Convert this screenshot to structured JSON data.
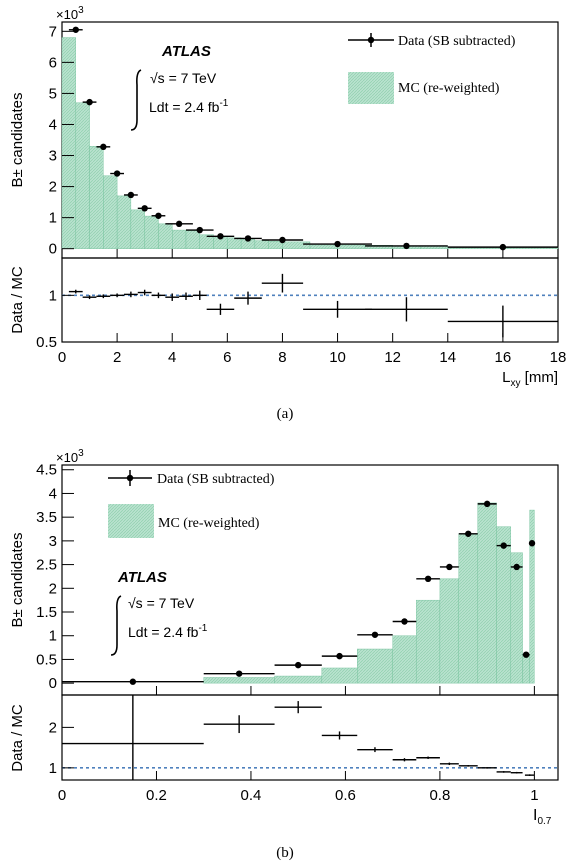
{
  "colors": {
    "mc_fill": "#a8d8c0",
    "mc_edge": "#6fbf98",
    "data": "#000000",
    "unity_line": "#4f81bd"
  },
  "chart_data": [
    {
      "panel": "(a)",
      "type": "histogram_ratio",
      "main": {
        "ylabel": "B± candidates",
        "y_multiplier": "×10",
        "y_multiplier_exp": "3",
        "ylim": [
          -0.3,
          7.3
        ],
        "yticks": [
          "0",
          "1",
          "2",
          "3",
          "4",
          "5",
          "6",
          "7"
        ],
        "atlas": "ATLAS",
        "energy": "√s = 7 TeV",
        "lumi": "Ldt = 2.4 fb",
        "lumi_exp": "-1",
        "legend": {
          "data": "Data (SB subtracted)",
          "mc": "MC (re-weighted)",
          "placement": "top-right"
        },
        "mc_hist": {
          "edges": [
            0.0,
            0.5,
            1.0,
            1.5,
            2.0,
            2.5,
            3.0,
            3.5,
            4.0,
            4.5,
            5.0,
            5.5,
            6.0,
            6.5,
            7.0,
            7.5,
            8.0,
            9.0,
            10.0,
            11.0,
            12.0,
            13.0,
            14.0,
            18.0
          ],
          "values": [
            6.8,
            4.7,
            3.3,
            2.35,
            1.7,
            1.25,
            1.05,
            0.8,
            0.6,
            0.58,
            0.45,
            0.38,
            0.35,
            0.3,
            0.26,
            0.24,
            0.22,
            0.12,
            0.12,
            0.11,
            0.08,
            0.08,
            0.06
          ]
        },
        "data_points": [
          {
            "x": 0.5,
            "xerr": 0.25,
            "y": 7.05,
            "yerr": 0.08
          },
          {
            "x": 1.0,
            "xerr": 0.25,
            "y": 4.72,
            "yerr": 0.07
          },
          {
            "x": 1.5,
            "xerr": 0.25,
            "y": 3.28,
            "yerr": 0.06
          },
          {
            "x": 2.0,
            "xerr": 0.25,
            "y": 2.42,
            "yerr": 0.05
          },
          {
            "x": 2.5,
            "xerr": 0.25,
            "y": 1.73,
            "yerr": 0.04
          },
          {
            "x": 3.0,
            "xerr": 0.25,
            "y": 1.3,
            "yerr": 0.04
          },
          {
            "x": 3.5,
            "xerr": 0.25,
            "y": 1.06,
            "yerr": 0.03
          },
          {
            "x": 4.25,
            "xerr": 0.5,
            "y": 0.8,
            "yerr": 0.03
          },
          {
            "x": 5.0,
            "xerr": 0.5,
            "y": 0.6,
            "yerr": 0.03
          },
          {
            "x": 5.75,
            "xerr": 0.5,
            "y": 0.4,
            "yerr": 0.02
          },
          {
            "x": 6.75,
            "xerr": 0.5,
            "y": 0.33,
            "yerr": 0.02
          },
          {
            "x": 8.0,
            "xerr": 0.75,
            "y": 0.28,
            "yerr": 0.02
          },
          {
            "x": 10.0,
            "xerr": 1.25,
            "y": 0.15,
            "yerr": 0.015
          },
          {
            "x": 12.5,
            "xerr": 1.5,
            "y": 0.09,
            "yerr": 0.01
          },
          {
            "x": 16.0,
            "xerr": 2.0,
            "y": 0.05,
            "yerr": 0.01
          }
        ]
      },
      "ratio": {
        "ylabel": "Data / MC",
        "ylim": [
          0.5,
          1.4
        ],
        "yticks": [
          "0.5",
          "1"
        ],
        "ytick_values": [
          0.5,
          1.0
        ],
        "points": [
          {
            "x": 0.5,
            "xerr": 0.25,
            "y": 1.04,
            "yerr": 0.02
          },
          {
            "x": 1.0,
            "xerr": 0.25,
            "y": 0.98,
            "yerr": 0.02
          },
          {
            "x": 1.5,
            "xerr": 0.25,
            "y": 0.99,
            "yerr": 0.02
          },
          {
            "x": 2.0,
            "xerr": 0.25,
            "y": 1.0,
            "yerr": 0.02
          },
          {
            "x": 2.5,
            "xerr": 0.25,
            "y": 1.01,
            "yerr": 0.03
          },
          {
            "x": 3.0,
            "xerr": 0.25,
            "y": 1.03,
            "yerr": 0.03
          },
          {
            "x": 3.5,
            "xerr": 0.25,
            "y": 1.0,
            "yerr": 0.03
          },
          {
            "x": 4.0,
            "xerr": 0.25,
            "y": 0.98,
            "yerr": 0.04
          },
          {
            "x": 4.5,
            "xerr": 0.25,
            "y": 0.99,
            "yerr": 0.04
          },
          {
            "x": 5.0,
            "xerr": 0.25,
            "y": 1.0,
            "yerr": 0.05
          },
          {
            "x": 5.75,
            "xerr": 0.5,
            "y": 0.85,
            "yerr": 0.06
          },
          {
            "x": 6.75,
            "xerr": 0.5,
            "y": 0.97,
            "yerr": 0.07
          },
          {
            "x": 8.0,
            "xerr": 0.75,
            "y": 1.13,
            "yerr": 0.1
          },
          {
            "x": 10.0,
            "xerr": 1.25,
            "y": 0.85,
            "yerr": 0.09
          },
          {
            "x": 12.5,
            "xerr": 1.5,
            "y": 0.85,
            "yerr": 0.13
          },
          {
            "x": 16.0,
            "xerr": 2.0,
            "y": 0.72,
            "yerr": 0.17
          }
        ]
      },
      "x": {
        "label": "L",
        "label_sub": "xy",
        "label_unit": " [mm]",
        "lim": [
          0,
          18
        ],
        "ticks": [
          "0",
          "2",
          "4",
          "6",
          "8",
          "10",
          "12",
          "14",
          "16",
          "18"
        ],
        "tick_values": [
          0,
          2,
          4,
          6,
          8,
          10,
          12,
          14,
          16,
          18
        ]
      }
    },
    {
      "panel": "(b)",
      "type": "histogram_ratio",
      "main": {
        "ylabel": "B± candidates",
        "y_multiplier": "×10",
        "y_multiplier_exp": "3",
        "ylim": [
          -0.25,
          4.6
        ],
        "yticks": [
          "0",
          "0.5",
          "1",
          "1.5",
          "2",
          "2.5",
          "3",
          "3.5",
          "4",
          "4.5"
        ],
        "atlas": "ATLAS",
        "energy": "√s = 7 TeV",
        "lumi": "Ldt = 2.4 fb",
        "lumi_exp": "-1",
        "legend": {
          "data": "Data (SB subtracted)",
          "mc": "MC (re-weighted)",
          "placement": "top-left"
        },
        "mc_hist": {
          "edges": [
            0.0,
            0.3,
            0.45,
            0.55,
            0.625,
            0.7,
            0.75,
            0.8,
            0.84,
            0.88,
            0.92,
            0.95,
            0.975,
            0.99,
            1.0
          ],
          "values": [
            0.0,
            0.12,
            0.15,
            0.32,
            0.72,
            1.0,
            1.75,
            2.2,
            3.15,
            3.8,
            3.3,
            2.75,
            0.6,
            3.65
          ]
        },
        "data_points": [
          {
            "x": 0.15,
            "xerr": 0.15,
            "y": 0.03,
            "yerr": 0.03
          },
          {
            "x": 0.375,
            "xerr": 0.075,
            "y": 0.2,
            "yerr": 0.02
          },
          {
            "x": 0.5,
            "xerr": 0.05,
            "y": 0.38,
            "yerr": 0.03
          },
          {
            "x": 0.5875,
            "xerr": 0.0375,
            "y": 0.57,
            "yerr": 0.03
          },
          {
            "x": 0.6625,
            "xerr": 0.0375,
            "y": 1.02,
            "yerr": 0.04
          },
          {
            "x": 0.725,
            "xerr": 0.025,
            "y": 1.3,
            "yerr": 0.04
          },
          {
            "x": 0.775,
            "xerr": 0.025,
            "y": 2.2,
            "yerr": 0.05
          },
          {
            "x": 0.82,
            "xerr": 0.02,
            "y": 2.45,
            "yerr": 0.05
          },
          {
            "x": 0.86,
            "xerr": 0.02,
            "y": 3.15,
            "yerr": 0.06
          },
          {
            "x": 0.9,
            "xerr": 0.02,
            "y": 3.78,
            "yerr": 0.06
          },
          {
            "x": 0.935,
            "xerr": 0.015,
            "y": 2.9,
            "yerr": 0.05
          },
          {
            "x": 0.9625,
            "xerr": 0.0125,
            "y": 2.45,
            "yerr": 0.05
          },
          {
            "x": 0.9825,
            "xerr": 0.0075,
            "y": 0.6,
            "yerr": 0.03
          },
          {
            "x": 0.995,
            "xerr": 0.005,
            "y": 2.95,
            "yerr": 0.05
          }
        ]
      },
      "ratio": {
        "ylabel": "Data / MC",
        "ylim": [
          0.7,
          2.8
        ],
        "yticks": [
          "1",
          "2"
        ],
        "ytick_values": [
          1,
          2
        ],
        "points": [
          {
            "x": 0.15,
            "xerr": 0.15,
            "y": 1.6,
            "yerr": 1.2
          },
          {
            "x": 0.375,
            "xerr": 0.075,
            "y": 2.08,
            "yerr": 0.22
          },
          {
            "x": 0.5,
            "xerr": 0.05,
            "y": 2.5,
            "yerr": 0.15
          },
          {
            "x": 0.5875,
            "xerr": 0.0375,
            "y": 1.8,
            "yerr": 0.1
          },
          {
            "x": 0.6625,
            "xerr": 0.0375,
            "y": 1.45,
            "yerr": 0.06
          },
          {
            "x": 0.725,
            "xerr": 0.025,
            "y": 1.2,
            "yerr": 0.04
          },
          {
            "x": 0.775,
            "xerr": 0.025,
            "y": 1.25,
            "yerr": 0.03
          },
          {
            "x": 0.82,
            "xerr": 0.02,
            "y": 1.1,
            "yerr": 0.03
          },
          {
            "x": 0.86,
            "xerr": 0.02,
            "y": 1.05,
            "yerr": 0.02
          },
          {
            "x": 0.9,
            "xerr": 0.02,
            "y": 1.0,
            "yerr": 0.02
          },
          {
            "x": 0.935,
            "xerr": 0.015,
            "y": 0.9,
            "yerr": 0.02
          },
          {
            "x": 0.9625,
            "xerr": 0.0125,
            "y": 0.88,
            "yerr": 0.02
          },
          {
            "x": 0.99,
            "xerr": 0.01,
            "y": 0.82,
            "yerr": 0.02
          }
        ]
      },
      "x": {
        "label": "I",
        "label_sub": "0.7",
        "label_unit": "",
        "lim": [
          0,
          1.05
        ],
        "ticks": [
          "0",
          "0.2",
          "0.4",
          "0.6",
          "0.8",
          "1"
        ],
        "tick_values": [
          0,
          0.2,
          0.4,
          0.6,
          0.8,
          1
        ]
      }
    }
  ]
}
